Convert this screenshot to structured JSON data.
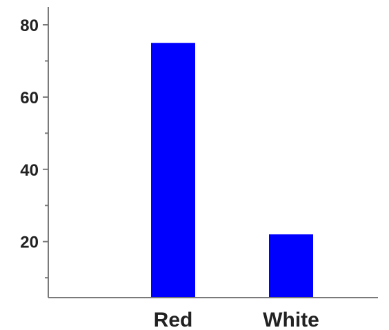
{
  "chart_data": {
    "type": "bar",
    "categories": [
      "Red",
      "White"
    ],
    "values": [
      75,
      22
    ],
    "ylim": [
      4.5,
      84
    ],
    "yticks_labeled": [
      20,
      40,
      60,
      80
    ],
    "yticks_minor": [
      10,
      30,
      50,
      70
    ],
    "bar_color": "#0000ff",
    "axis_color": "#7a7a7a",
    "title": "",
    "xlabel": "",
    "ylabel": "",
    "grid": false,
    "legend": "none"
  }
}
